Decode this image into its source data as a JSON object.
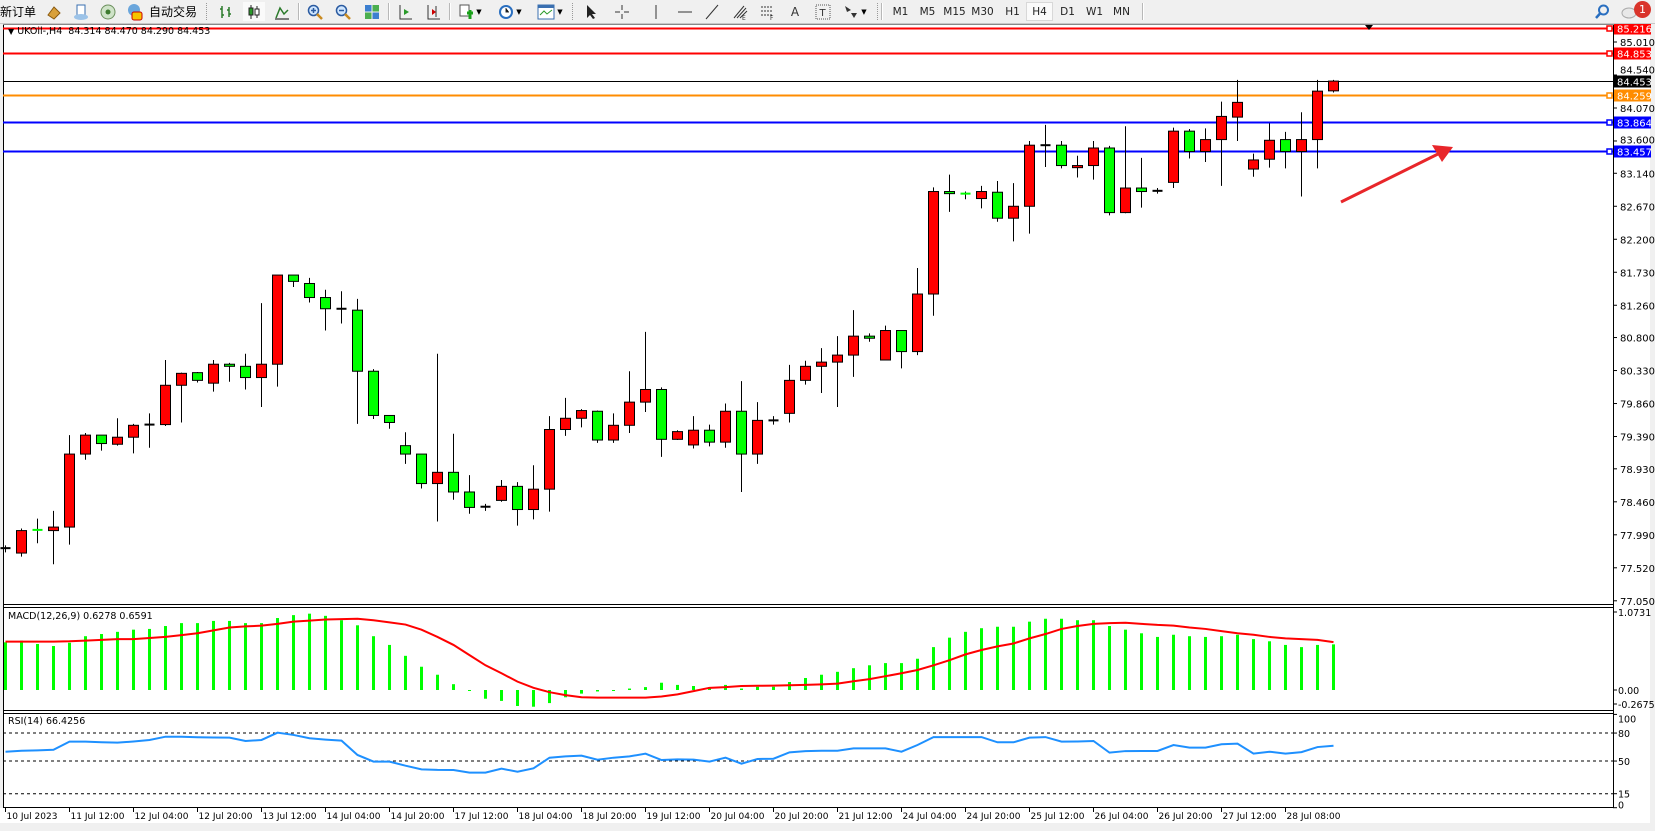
{
  "toolbar": {
    "new_order_label": "新订单",
    "auto_trading_label": "自动交易",
    "timeframes": [
      "M1",
      "M5",
      "M15",
      "M30",
      "H1",
      "H4",
      "D1",
      "W1",
      "MN"
    ],
    "active_timeframe": "H4",
    "notification_count": "1",
    "icons": [
      "gold-bars-icon",
      "market-watch-icon",
      "signal-icon",
      "auto-trading-icon",
      "bar-chart-icon",
      "candlestick-icon",
      "line-chart-icon",
      "zoom-in-icon",
      "zoom-out-icon",
      "tile-windows-icon",
      "auto-scroll-icon",
      "chart-shift-icon",
      "indicators-icon",
      "periods-clock-icon",
      "templates-icon",
      "cursor-icon",
      "crosshair-icon",
      "vertical-line-icon",
      "horizontal-line-icon",
      "trendline-icon",
      "fibonacci-icon",
      "fibo-fan-icon",
      "text-icon",
      "text-label-icon",
      "arrows-icon",
      "search-icon",
      "notification-icon"
    ]
  },
  "chart_header": {
    "symbol": "UKOil-,H4",
    "ohlc": "84.314 84.470 84.290 84.453"
  },
  "macd": {
    "label": "MACD(12,26,9) 0.6278 0.6591"
  },
  "rsi": {
    "label": "RSI(14) 66.4256"
  },
  "colors": {
    "bull": "#ff0000",
    "bear": "#00ff00",
    "signal": "#ff0000",
    "histogram": "#00ff00",
    "rsi": "#1e90ff",
    "bid_line": "#000000",
    "arrow": "#e8262a"
  },
  "chart_data": [
    {
      "type": "candlestick",
      "symbol": "UKOil-",
      "timeframe": "H4",
      "ylim": [
        77.05,
        85.216
      ],
      "y_ticks": [
        "85.010",
        "84.540",
        "84.070",
        "83.600",
        "83.140",
        "82.670",
        "82.200",
        "81.730",
        "81.260",
        "80.800",
        "80.330",
        "79.860",
        "79.390",
        "78.930",
        "78.460",
        "77.990",
        "77.520",
        "77.050"
      ],
      "x_ticks": [
        {
          "bar": 0,
          "label": "10 Jul 2023"
        },
        {
          "bar": 4,
          "label": "11 Jul 12:00"
        },
        {
          "bar": 8,
          "label": "12 Jul 04:00"
        },
        {
          "bar": 12,
          "label": "12 Jul 20:00"
        },
        {
          "bar": 16,
          "label": "13 Jul 12:00"
        },
        {
          "bar": 20,
          "label": "14 Jul 04:00"
        },
        {
          "bar": 24,
          "label": "14 Jul 20:00"
        },
        {
          "bar": 28,
          "label": "17 Jul 12:00"
        },
        {
          "bar": 32,
          "label": "18 Jul 04:00"
        },
        {
          "bar": 36,
          "label": "18 Jul 20:00"
        },
        {
          "bar": 40,
          "label": "19 Jul 12:00"
        },
        {
          "bar": 44,
          "label": "20 Jul 04:00"
        },
        {
          "bar": 48,
          "label": "20 Jul 20:00"
        },
        {
          "bar": 52,
          "label": "21 Jul 12:00"
        },
        {
          "bar": 56,
          "label": "24 Jul 04:00"
        },
        {
          "bar": 60,
          "label": "24 Jul 20:00"
        },
        {
          "bar": 64,
          "label": "25 Jul 12:00"
        },
        {
          "bar": 68,
          "label": "26 Jul 04:00"
        },
        {
          "bar": 72,
          "label": "26 Jul 20:00"
        },
        {
          "bar": 76,
          "label": "27 Jul 12:00"
        },
        {
          "bar": 80,
          "label": "28 Jul 08:00"
        }
      ],
      "ohlc": [
        [
          77.8,
          77.84,
          77.74,
          77.8
        ],
        [
          77.73,
          78.08,
          77.68,
          78.05
        ],
        [
          78.06,
          78.22,
          77.87,
          78.05
        ],
        [
          78.05,
          78.33,
          77.57,
          78.1
        ],
        [
          78.1,
          79.41,
          77.85,
          79.14
        ],
        [
          79.14,
          79.44,
          79.06,
          79.41
        ],
        [
          79.41,
          79.41,
          79.19,
          79.29
        ],
        [
          79.28,
          79.65,
          79.26,
          79.38
        ],
        [
          79.38,
          79.57,
          79.15,
          79.55
        ],
        [
          79.56,
          79.72,
          79.23,
          79.56
        ],
        [
          79.56,
          80.48,
          79.54,
          80.12
        ],
        [
          80.12,
          80.3,
          79.59,
          80.29
        ],
        [
          80.3,
          80.31,
          80.16,
          80.19
        ],
        [
          80.15,
          80.48,
          80.03,
          80.42
        ],
        [
          80.42,
          80.44,
          80.17,
          80.39
        ],
        [
          80.39,
          80.57,
          80.06,
          80.23
        ],
        [
          80.23,
          81.29,
          79.81,
          80.42
        ],
        [
          80.42,
          81.69,
          80.1,
          81.69
        ],
        [
          81.69,
          81.69,
          81.52,
          81.6
        ],
        [
          81.57,
          81.65,
          81.3,
          81.37
        ],
        [
          81.37,
          81.48,
          80.9,
          81.21
        ],
        [
          81.21,
          81.46,
          81.0,
          81.21
        ],
        [
          81.19,
          81.35,
          79.57,
          80.32
        ],
        [
          80.32,
          80.35,
          79.64,
          79.69
        ],
        [
          79.69,
          79.69,
          79.5,
          79.59
        ],
        [
          79.26,
          79.45,
          79.0,
          79.14
        ],
        [
          79.14,
          79.14,
          78.65,
          78.72
        ],
        [
          78.72,
          80.57,
          78.18,
          78.88
        ],
        [
          78.88,
          79.43,
          78.49,
          78.6
        ],
        [
          78.6,
          78.84,
          78.29,
          78.38
        ],
        [
          78.39,
          78.43,
          78.33,
          78.39
        ],
        [
          78.48,
          78.77,
          78.46,
          78.68
        ],
        [
          78.68,
          78.74,
          78.12,
          78.35
        ],
        [
          78.35,
          78.98,
          78.21,
          78.64
        ],
        [
          78.64,
          79.68,
          78.32,
          79.49
        ],
        [
          79.49,
          79.94,
          79.4,
          79.65
        ],
        [
          79.65,
          79.78,
          79.52,
          79.76
        ],
        [
          79.75,
          79.76,
          79.3,
          79.34
        ],
        [
          79.34,
          79.72,
          79.3,
          79.55
        ],
        [
          79.55,
          80.32,
          79.44,
          79.88
        ],
        [
          79.88,
          80.88,
          79.74,
          80.06
        ],
        [
          80.06,
          80.09,
          79.1,
          79.35
        ],
        [
          79.35,
          79.48,
          79.34,
          79.46
        ],
        [
          79.27,
          79.68,
          79.22,
          79.48
        ],
        [
          79.48,
          79.56,
          79.25,
          79.31
        ],
        [
          79.31,
          79.86,
          79.23,
          79.75
        ],
        [
          79.75,
          80.18,
          78.6,
          79.14
        ],
        [
          79.14,
          79.88,
          79.0,
          79.62
        ],
        [
          79.62,
          79.68,
          79.56,
          79.62
        ],
        [
          79.72,
          80.41,
          79.59,
          80.19
        ],
        [
          80.19,
          80.47,
          80.13,
          80.39
        ],
        [
          80.39,
          80.65,
          80.01,
          80.45
        ],
        [
          80.45,
          80.82,
          79.81,
          80.55
        ],
        [
          80.55,
          81.19,
          80.24,
          80.82
        ],
        [
          80.82,
          80.86,
          80.74,
          80.79
        ],
        [
          80.48,
          80.97,
          80.48,
          80.9
        ],
        [
          80.9,
          80.9,
          80.36,
          80.6
        ],
        [
          80.6,
          81.79,
          80.55,
          81.42
        ],
        [
          81.42,
          82.94,
          81.11,
          82.88
        ],
        [
          82.88,
          83.12,
          82.59,
          82.85
        ],
        [
          82.85,
          82.88,
          82.77,
          82.83
        ],
        [
          82.78,
          82.96,
          82.64,
          82.88
        ],
        [
          82.87,
          83.03,
          82.45,
          82.5
        ],
        [
          82.5,
          83.0,
          82.17,
          82.67
        ],
        [
          82.67,
          83.6,
          82.28,
          83.54
        ],
        [
          83.54,
          83.83,
          83.23,
          83.54
        ],
        [
          83.54,
          83.6,
          83.21,
          83.25
        ],
        [
          83.22,
          83.39,
          83.08,
          83.25
        ],
        [
          83.25,
          83.6,
          83.05,
          83.5
        ],
        [
          83.5,
          83.53,
          82.54,
          82.58
        ],
        [
          82.58,
          83.81,
          82.57,
          82.93
        ],
        [
          82.93,
          83.36,
          82.65,
          82.88
        ],
        [
          82.89,
          82.93,
          82.85,
          82.89
        ],
        [
          83.01,
          83.79,
          82.93,
          83.74
        ],
        [
          83.74,
          83.77,
          83.35,
          83.45
        ],
        [
          83.45,
          83.78,
          83.3,
          83.62
        ],
        [
          83.62,
          84.16,
          82.96,
          83.95
        ],
        [
          83.94,
          84.47,
          83.6,
          84.15
        ],
        [
          83.2,
          83.42,
          83.09,
          83.33
        ],
        [
          83.34,
          83.85,
          83.22,
          83.61
        ],
        [
          83.62,
          83.73,
          83.21,
          83.45
        ],
        [
          83.45,
          84.01,
          82.81,
          83.62
        ],
        [
          83.62,
          84.47,
          83.21,
          84.31
        ],
        [
          84.314,
          84.47,
          84.29,
          84.453
        ]
      ],
      "price_lines": [
        {
          "price": 85.216,
          "label": "85.216",
          "color": "#ff0000"
        },
        {
          "price": 84.853,
          "label": "84.853",
          "color": "#ff0000"
        },
        {
          "price": 84.453,
          "label": "84.453",
          "color": "#000000",
          "kind": "bid"
        },
        {
          "price": 84.259,
          "label": "84.259",
          "color": "#ff8c00"
        },
        {
          "price": 83.864,
          "label": "83.864",
          "color": "#0000ff"
        },
        {
          "price": 83.457,
          "label": "83.457",
          "color": "#0000ff"
        }
      ],
      "annotations": [
        {
          "type": "arrow",
          "color": "#e8262a",
          "direction": "up-right"
        }
      ]
    },
    {
      "type": "bar+line",
      "indicator": "MACD(12,26,9)",
      "ylim": [
        -0.2675,
        1.0731
      ],
      "y_ticks": [
        "1.0731",
        "0.00",
        "-0.2675"
      ],
      "histogram": [
        0.656,
        0.68,
        0.633,
        0.605,
        0.65,
        0.74,
        0.77,
        0.8,
        0.83,
        0.84,
        0.88,
        0.92,
        0.92,
        0.95,
        0.95,
        0.92,
        0.92,
        0.99,
        1.03,
        1.05,
        1.02,
        0.96,
        0.89,
        0.74,
        0.62,
        0.47,
        0.32,
        0.21,
        0.08,
        -0.01,
        -0.12,
        -0.15,
        -0.22,
        -0.23,
        -0.18,
        -0.1,
        -0.05,
        -0.02,
        -0.01,
        0.02,
        0.04,
        0.1,
        0.07,
        0.055,
        0.04,
        0.07,
        0.02,
        0.045,
        0.045,
        0.11,
        0.165,
        0.21,
        0.25,
        0.3,
        0.34,
        0.37,
        0.37,
        0.43,
        0.59,
        0.72,
        0.8,
        0.85,
        0.87,
        0.87,
        0.94,
        0.98,
        0.98,
        0.96,
        0.96,
        0.88,
        0.83,
        0.78,
        0.73,
        0.76,
        0.74,
        0.73,
        0.74,
        0.76,
        0.7,
        0.67,
        0.62,
        0.59,
        0.62,
        0.6278
      ],
      "signal": [
        0.665,
        0.665,
        0.665,
        0.665,
        0.67,
        0.68,
        0.69,
        0.7,
        0.7,
        0.715,
        0.73,
        0.755,
        0.78,
        0.82,
        0.86,
        0.875,
        0.885,
        0.91,
        0.94,
        0.955,
        0.97,
        0.975,
        0.98,
        0.96,
        0.93,
        0.9,
        0.83,
        0.73,
        0.62,
        0.48,
        0.34,
        0.23,
        0.115,
        0.03,
        -0.03,
        -0.07,
        -0.1,
        -0.105,
        -0.105,
        -0.105,
        -0.105,
        -0.09,
        -0.06,
        -0.015,
        0.03,
        0.04,
        0.055,
        0.058,
        0.06,
        0.065,
        0.07,
        0.078,
        0.087,
        0.12,
        0.15,
        0.19,
        0.23,
        0.275,
        0.34,
        0.41,
        0.49,
        0.55,
        0.6,
        0.64,
        0.71,
        0.77,
        0.84,
        0.88,
        0.91,
        0.92,
        0.925,
        0.91,
        0.895,
        0.885,
        0.86,
        0.84,
        0.81,
        0.78,
        0.76,
        0.73,
        0.71,
        0.7,
        0.69,
        0.6591
      ]
    },
    {
      "type": "line",
      "indicator": "RSI(14)",
      "ylim": [
        0,
        100
      ],
      "y_ticks": [
        "100",
        "80",
        "50",
        "15",
        "0"
      ],
      "levels": [
        80,
        50,
        15
      ],
      "values": [
        60,
        61,
        61.5,
        62.1,
        70.8,
        70.8,
        70.2,
        69.7,
        71,
        72.6,
        76.1,
        76,
        75.5,
        75.3,
        75.1,
        71.5,
        72.6,
        80.4,
        78,
        74.4,
        73,
        71.9,
        56.5,
        49.4,
        49.4,
        45,
        41.1,
        40.5,
        40.4,
        37.6,
        37.6,
        41.8,
        38.6,
        42.2,
        53.6,
        55,
        55.8,
        51.4,
        53.6,
        55,
        57.9,
        51.1,
        51.8,
        51.5,
        49.4,
        53.6,
        47.2,
        52.2,
        52.5,
        59.3,
        60.7,
        61,
        61.1,
        63.6,
        63.6,
        63.6,
        60,
        67.2,
        75.7,
        75.7,
        75.7,
        75.7,
        70.1,
        70.1,
        75.1,
        75.7,
        70.8,
        71,
        71.5,
        59,
        60.7,
        60.8,
        60.8,
        67.2,
        64.4,
        64.4,
        68,
        68.7,
        58,
        60,
        58,
        59.6,
        65,
        66.4256
      ]
    }
  ]
}
